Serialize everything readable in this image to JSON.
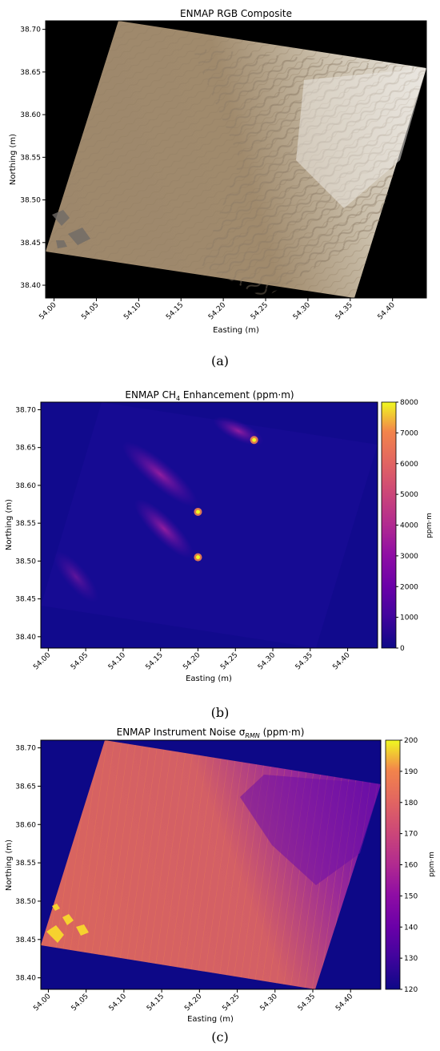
{
  "panels": [
    {
      "caption": "(a)",
      "chart_data": {
        "type": "heatmap",
        "title": "ENMAP RGB Composite",
        "xlabel": "Easting (m)",
        "ylabel": "Northing (m)",
        "xlim": [
          53.99,
          54.44
        ],
        "ylim": [
          38.385,
          38.71
        ],
        "x_ticks": [
          "54.00",
          "54.05",
          "54.10",
          "54.15",
          "54.20",
          "54.25",
          "54.30",
          "54.35",
          "54.40"
        ],
        "y_ticks": [
          "38.40",
          "38.45",
          "38.50",
          "38.55",
          "38.60",
          "38.65",
          "38.70"
        ],
        "background": "#000000",
        "colors": {
          "sand": "#9a8468",
          "salt": "#e7e4dc"
        }
      }
    },
    {
      "caption": "(b)",
      "chart_data": {
        "type": "heatmap",
        "title": "ENMAP CH",
        "title_sub": "4",
        "title_end": " Enhancement (ppm·m)",
        "xlabel": "Easting (m)",
        "ylabel": "Northing (m)",
        "xlim": [
          53.99,
          54.44
        ],
        "ylim": [
          38.385,
          38.71
        ],
        "x_ticks": [
          "54.00",
          "54.05",
          "54.10",
          "54.15",
          "54.20",
          "54.25",
          "54.30",
          "54.35",
          "54.40"
        ],
        "y_ticks": [
          "38.40",
          "38.45",
          "38.50",
          "38.55",
          "38.60",
          "38.65",
          "38.70"
        ],
        "colorbar": {
          "label": "ppm·m",
          "min": 0,
          "max": 8000,
          "ticks": [
            "0",
            "1000",
            "2000",
            "3000",
            "4000",
            "5000",
            "6000",
            "7000",
            "8000"
          ]
        },
        "colormap": "plasma",
        "plume_sources": [
          {
            "x": 54.275,
            "y": 38.66
          },
          {
            "x": 54.2,
            "y": 38.565
          },
          {
            "x": 54.2,
            "y": 38.505
          }
        ]
      }
    },
    {
      "caption": "(c)",
      "chart_data": {
        "type": "heatmap",
        "title": "ENMAP Instrument Noise σ",
        "title_sub": "RMN",
        "title_end": " (ppm·m)",
        "xlabel": "Easting (m)",
        "ylabel": "Northing (m)",
        "xlim": [
          53.99,
          54.44
        ],
        "ylim": [
          38.385,
          38.71
        ],
        "x_ticks": [
          "54.00",
          "54.05",
          "54.10",
          "54.15",
          "54.20",
          "54.25",
          "54.30",
          "54.35",
          "54.40"
        ],
        "y_ticks": [
          "38.40",
          "38.45",
          "38.50",
          "38.55",
          "38.60",
          "38.65",
          "38.70"
        ],
        "colorbar": {
          "label": "ppm·m",
          "min": 120,
          "max": 200,
          "ticks": [
            "120",
            "130",
            "140",
            "150",
            "160",
            "170",
            "180",
            "190",
            "200"
          ]
        },
        "colormap": "plasma"
      }
    }
  ]
}
